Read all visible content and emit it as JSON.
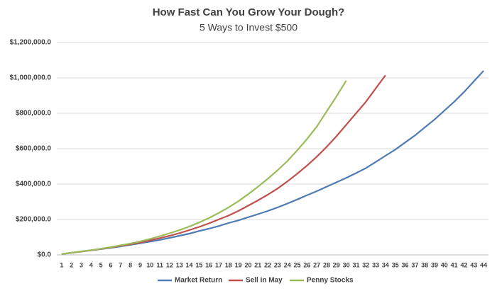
{
  "chart_data": {
    "type": "line",
    "title": "How Fast Can You Grow Your Dough?",
    "subtitle": "5 Ways to Invest $500",
    "categories": [
      1,
      2,
      3,
      4,
      5,
      6,
      7,
      8,
      9,
      10,
      11,
      12,
      13,
      14,
      15,
      16,
      17,
      18,
      19,
      20,
      21,
      22,
      23,
      24,
      25,
      26,
      27,
      28,
      29,
      30,
      31,
      32,
      33,
      34,
      35,
      36,
      37,
      38,
      39,
      40,
      41,
      42,
      43,
      44
    ],
    "series": [
      {
        "name": "Market Return",
        "color": "#4f7bb5",
        "values": [
          5000,
          12000,
          19000,
          26000,
          33000,
          40000,
          48000,
          57000,
          66000,
          75000,
          85000,
          96000,
          108000,
          120000,
          135000,
          148000,
          163000,
          180000,
          195000,
          213000,
          230000,
          248000,
          268000,
          290000,
          313000,
          337000,
          360000,
          385000,
          410000,
          435000,
          462000,
          490000,
          525000,
          560000,
          595000,
          635000,
          675000,
          720000,
          765000,
          815000,
          865000,
          920000,
          980000,
          1040000
        ]
      },
      {
        "name": "Sell in May",
        "color": "#c0504d",
        "values": [
          5000,
          12000,
          19000,
          26000,
          34000,
          42000,
          51000,
          60000,
          70000,
          82000,
          95000,
          108000,
          123000,
          140000,
          158000,
          178000,
          200000,
          222000,
          248000,
          278000,
          308000,
          340000,
          375000,
          415000,
          458000,
          505000,
          555000,
          610000,
          670000,
          735000,
          800000,
          865000,
          940000,
          1015000,
          null,
          null,
          null,
          null,
          null,
          null,
          null,
          null,
          null,
          null
        ]
      },
      {
        "name": "Penny Stocks",
        "color": "#9bbb59",
        "values": [
          5000,
          12000,
          20000,
          27000,
          35000,
          44000,
          54000,
          64000,
          76000,
          90000,
          106000,
          122000,
          140000,
          160000,
          183000,
          208000,
          237000,
          268000,
          303000,
          343000,
          385000,
          430000,
          478000,
          530000,
          590000,
          655000,
          725000,
          810000,
          895000,
          985000,
          null,
          null,
          null,
          null,
          null,
          null,
          null,
          null,
          null,
          null,
          null,
          null,
          null,
          null
        ]
      }
    ],
    "ylim": [
      0,
      1200000
    ],
    "yticks": [
      {
        "value": 0,
        "label": "$0.0"
      },
      {
        "value": 200000,
        "label": "$200,000.0"
      },
      {
        "value": 400000,
        "label": "$400,000.0"
      },
      {
        "value": 600000,
        "label": "$600,000.0"
      },
      {
        "value": 800000,
        "label": "$800,000.0"
      },
      {
        "value": 1000000,
        "label": "$1,000,000.0"
      },
      {
        "value": 1200000,
        "label": "$1,200,000.0"
      }
    ],
    "grid": true,
    "legend": "bottom"
  }
}
